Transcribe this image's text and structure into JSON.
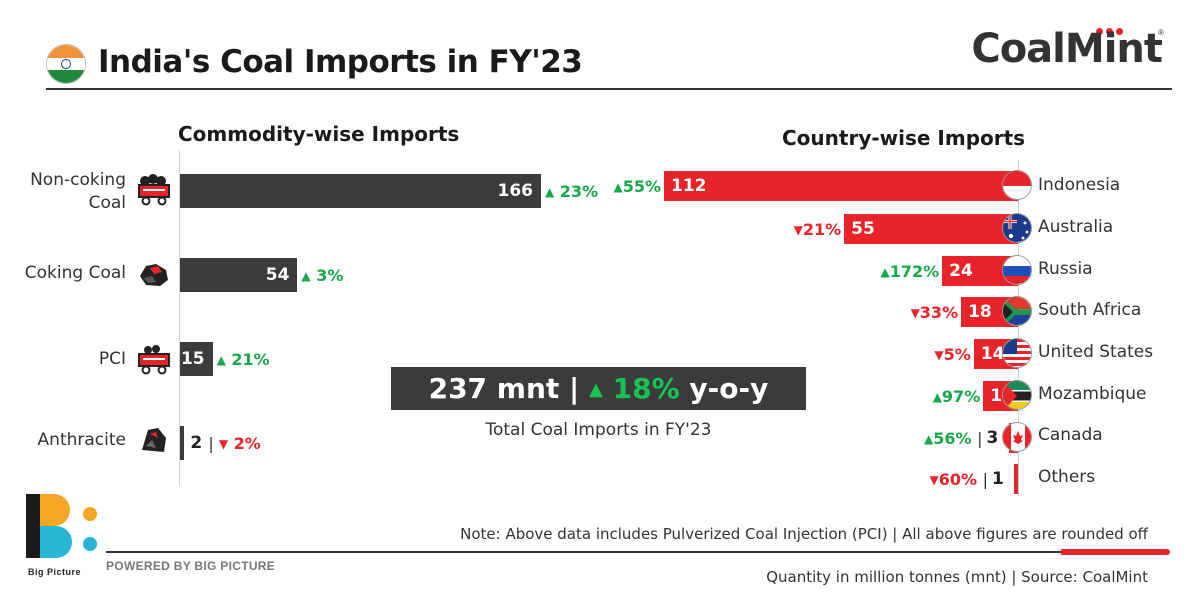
{
  "header": {
    "title": "India's Coal Imports in FY'23",
    "logo_text": "CoalMint"
  },
  "chart_data": [
    {
      "type": "bar",
      "title": "Commodity-wise Imports",
      "orientation": "horizontal",
      "categories": [
        "Non-coking Coal",
        "Coking Coal",
        "PCI",
        "Anthracite"
      ],
      "category_lines": [
        [
          "Non-coking",
          "Coal"
        ],
        [
          "Coking Coal"
        ],
        [
          "PCI"
        ],
        [
          "Anthracite"
        ]
      ],
      "values": [
        166,
        54,
        15,
        2
      ],
      "value_labels": [
        "166",
        "54",
        "15",
        "2"
      ],
      "change_labels": [
        "23%",
        "3%",
        "21%",
        "2%"
      ],
      "change_direction": [
        "up",
        "up",
        "up",
        "down"
      ],
      "unit": "mnt"
    },
    {
      "type": "bar",
      "title": "Country-wise Imports",
      "orientation": "horizontal",
      "categories": [
        "Indonesia",
        "Australia",
        "Russia",
        "South Africa",
        "United States",
        "Mozambique",
        "Canada",
        "Others"
      ],
      "values": [
        112,
        55,
        24,
        18,
        14,
        11,
        3,
        1
      ],
      "value_labels": [
        "112",
        "55",
        "24",
        "18",
        "14",
        "11",
        "3",
        "1"
      ],
      "change_labels": [
        "55%",
        "21%",
        "172%",
        "33%",
        "5%",
        "97%",
        "56%",
        "60%"
      ],
      "change_direction": [
        "up",
        "down",
        "up",
        "down",
        "down",
        "up",
        "up",
        "down"
      ],
      "unit": "mnt"
    }
  ],
  "total": {
    "value_text": "237 mnt",
    "separator": "|",
    "change_text": "18%",
    "change_direction": "up",
    "suffix": "y-o-y",
    "caption": "Total Coal Imports in FY'23"
  },
  "footer": {
    "note": "Note: Above data includes Pulverized Coal Injection (PCI) | All above figures are rounded off",
    "source": "Quantity in million tonnes (mnt) | Source: CoalMint",
    "powered_by": "POWERED BY BIG PICTURE",
    "brand_caption": "Big Picture"
  },
  "colors": {
    "commodity_bar": "#3b3b3b",
    "country_bar": "#e8232a",
    "up": "#17a84b",
    "down": "#e8232a"
  }
}
